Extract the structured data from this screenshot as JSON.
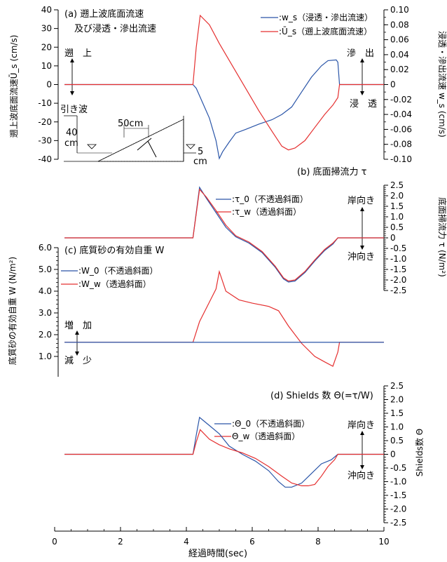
{
  "chart_data": [
    {
      "type": "line",
      "panel_label": "(a) 遡上波底面流速",
      "panel_label_line2": "及び浸透・滲出流速",
      "ylabel_left": "遡上波底面流速Ū_s (cm/s)",
      "ylabel_right": "浸透・滲出流速 w_s (cm/s)",
      "ylim_left": [
        -40,
        40
      ],
      "yticks_left": [
        -40,
        -30,
        -20,
        -10,
        0,
        10,
        20,
        30,
        40
      ],
      "ylim_right": [
        -0.1,
        0.1
      ],
      "yticks_right": [
        "-0.10",
        "-0.08",
        "-0.06",
        "-0.04",
        "-0.02",
        "0",
        "0.02",
        "0.04",
        "0.06",
        "0.08",
        "0.10"
      ],
      "series": [
        {
          "name": ":w_s（浸透・滲出流速）",
          "color": "#2a55a8",
          "axis": "right",
          "x": [
            0.3,
            4.2,
            4.3,
            4.5,
            4.7,
            4.9,
            5.0,
            5.1,
            5.3,
            5.5,
            5.8,
            6.2,
            6.6,
            6.9,
            7.2,
            7.5,
            7.8,
            8.1,
            8.3,
            8.55,
            8.6,
            8.65,
            10.0
          ],
          "y": [
            0,
            0,
            -0.005,
            -0.025,
            -0.045,
            -0.075,
            -0.099,
            -0.09,
            -0.077,
            -0.065,
            -0.06,
            -0.053,
            -0.047,
            -0.04,
            -0.03,
            -0.01,
            0.01,
            0.025,
            0.032,
            0.033,
            0.03,
            0,
            0
          ]
        },
        {
          "name": ":Ū_s（遡上波底面流速）",
          "color": "#e53030",
          "axis": "left",
          "x": [
            0.3,
            4.2,
            4.3,
            4.42,
            4.7,
            5.0,
            5.4,
            5.8,
            6.2,
            6.6,
            6.9,
            7.1,
            7.3,
            7.6,
            7.9,
            8.2,
            8.45,
            8.6,
            8.65,
            10.0
          ],
          "y": [
            0,
            0,
            20,
            37,
            32,
            22,
            10,
            -2,
            -14,
            -25,
            -33,
            -35,
            -34,
            -30,
            -23,
            -16,
            -11,
            -7,
            0,
            0
          ]
        }
      ],
      "annotations": {
        "upper_left": "遡　上",
        "lower_left": "引き波",
        "upper_right": "滲　出",
        "lower_right": "浸　透",
        "inset_width": "50cm",
        "inset_height_1": "40",
        "inset_height_2": "cm",
        "inset_small_1": "5",
        "inset_small_2": "cm"
      }
    },
    {
      "type": "line",
      "panel_label": "(b) 底面掃流力 τ",
      "ylabel_right": "底面掃流力 τ (N/m²)",
      "ylim": [
        -2.5,
        2.5
      ],
      "yticks": [
        "2.5",
        "2.0",
        "1.5",
        "1.0",
        "0.5",
        "0",
        "-0.5",
        "-1.0",
        "-1.5",
        "-2.0",
        "-2.5"
      ],
      "series": [
        {
          "name": ":τ_0（不透過斜面）",
          "color": "#2a55a8",
          "x": [
            0.3,
            4.2,
            4.3,
            4.4,
            4.6,
            4.9,
            5.2,
            5.5,
            5.9,
            6.3,
            6.7,
            6.95,
            7.1,
            7.3,
            7.6,
            7.9,
            8.2,
            8.45,
            8.6,
            10.0
          ],
          "y": [
            0,
            0,
            1.2,
            2.4,
            1.9,
            1.2,
            0.5,
            0.05,
            -0.25,
            -0.7,
            -1.4,
            -1.95,
            -2.1,
            -2.05,
            -1.65,
            -1.1,
            -0.6,
            -0.3,
            0,
            0
          ]
        },
        {
          "name": ":τ_w（透過斜面）",
          "color": "#e53030",
          "x": [
            0.3,
            4.2,
            4.3,
            4.4,
            4.6,
            4.9,
            5.2,
            5.5,
            5.9,
            6.3,
            6.7,
            6.95,
            7.1,
            7.3,
            7.6,
            7.9,
            8.2,
            8.45,
            8.6,
            10.0
          ],
          "y": [
            0,
            0,
            1.15,
            2.3,
            1.95,
            1.3,
            0.6,
            0.1,
            -0.2,
            -0.65,
            -1.35,
            -1.9,
            -2.05,
            -2.0,
            -1.6,
            -1.05,
            -0.55,
            -0.25,
            0,
            0
          ]
        }
      ],
      "annotations": {
        "up": "岸向き",
        "down": "沖向き"
      }
    },
    {
      "type": "line",
      "panel_label": "(c) 底質砂の有効自重 W",
      "ylabel_left": "底質砂の有効自重 W (N/m²)",
      "ylim": [
        1.0,
        6.0
      ],
      "yticks": [
        "1.0",
        "2.0",
        "3.0",
        "4.0",
        "5.0",
        "6.0"
      ],
      "series": [
        {
          "name": ":W_0（不透過斜面）",
          "color": "#2a55a8",
          "x": [
            0.3,
            10.0
          ],
          "y": [
            1.65,
            1.65
          ]
        },
        {
          "name": ":W_w（透過斜面）",
          "color": "#e53030",
          "x": [
            0.3,
            4.2,
            4.4,
            4.7,
            4.9,
            5.0,
            5.2,
            5.6,
            6.0,
            6.5,
            6.8,
            7.1,
            7.5,
            7.9,
            8.2,
            8.45,
            8.6,
            8.65,
            10.0
          ],
          "y": [
            1.65,
            1.65,
            2.6,
            3.5,
            4.1,
            4.9,
            4.0,
            3.6,
            3.45,
            3.3,
            3.1,
            2.4,
            1.6,
            1.0,
            0.75,
            0.55,
            1.2,
            1.65,
            1.65
          ]
        }
      ],
      "annotations": {
        "up": "増　加",
        "down": "減　少"
      }
    },
    {
      "type": "line",
      "panel_label": "(d) Shields 数 Θ(=τ/W)",
      "ylabel_right": "Shields数 Θ",
      "xlabel": "経過時間(sec)",
      "xlim": [
        0,
        10
      ],
      "xticks": [
        "0",
        "2",
        "4",
        "6",
        "8",
        "10"
      ],
      "ylim": [
        -2.5,
        2.5
      ],
      "yticks": [
        "2.5",
        "2.0",
        "1.5",
        "1.0",
        "0.5",
        "0",
        "-0.5",
        "-1.0",
        "-1.5",
        "-2.0",
        "-2.5"
      ],
      "series": [
        {
          "name": ":Θ_0（不透過斜面）",
          "color": "#2a55a8",
          "x": [
            0.3,
            4.2,
            4.3,
            4.4,
            4.7,
            5.0,
            5.3,
            5.7,
            6.1,
            6.5,
            6.8,
            7.0,
            7.2,
            7.5,
            7.8,
            8.1,
            8.4,
            8.6,
            10.0
          ],
          "y": [
            0,
            0,
            0.7,
            1.35,
            1.05,
            0.75,
            0.3,
            0.0,
            -0.25,
            -0.6,
            -1.0,
            -1.2,
            -1.2,
            -1.05,
            -0.7,
            -0.35,
            -0.2,
            0,
            0
          ]
        },
        {
          "name": "Θ_w（透過斜面）",
          "color": "#e53030",
          "x": [
            0.3,
            4.2,
            4.3,
            4.42,
            4.7,
            5.0,
            5.3,
            5.7,
            6.1,
            6.5,
            6.9,
            7.2,
            7.5,
            7.7,
            7.9,
            8.1,
            8.3,
            8.5,
            8.6,
            10.0
          ],
          "y": [
            0,
            0,
            0.45,
            0.9,
            0.55,
            0.35,
            0.2,
            0.05,
            -0.15,
            -0.45,
            -0.8,
            -1.05,
            -1.15,
            -1.15,
            -1.1,
            -0.8,
            -0.45,
            -0.2,
            0,
            0
          ]
        }
      ],
      "annotations": {
        "up": "岸向き",
        "down": "沖向き"
      }
    }
  ]
}
